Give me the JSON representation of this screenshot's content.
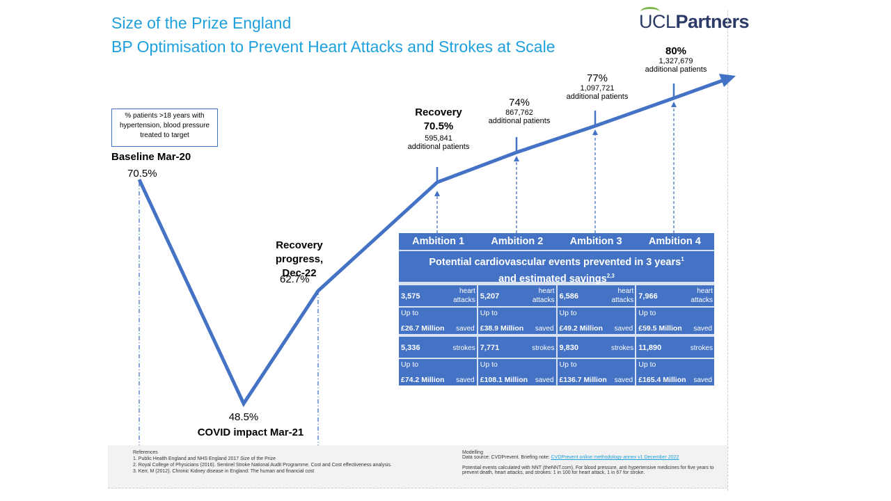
{
  "title": {
    "line1": "Size of the Prize England",
    "line2": "BP Optimisation to Prevent Heart Attacks and Strokes at Scale"
  },
  "logo": {
    "text_ucl": "UCL",
    "text_partners": "Partners"
  },
  "legend": "% patients >18 years with hypertension, blood pressure treated to target",
  "points": [
    {
      "label": "Baseline Mar-20",
      "value": "70.5%",
      "pct": 70.5
    },
    {
      "label": "COVID impact Mar-21",
      "value": "48.5%",
      "pct": 48.5
    },
    {
      "label": "Recovery progress, Dec-22",
      "value": "62.7%",
      "pct": 62.7
    },
    {
      "label": "Recovery",
      "value": "70.5%",
      "patients": "595,841",
      "suffix": "additional patients",
      "pct": 70.5
    },
    {
      "value": "74%",
      "patients": "867,762",
      "suffix": "additional patients",
      "pct": 74
    },
    {
      "value": "77%",
      "patients": "1,097,721",
      "suffix": "additional patients",
      "pct": 77
    },
    {
      "value": "80%",
      "patients": "1,327,679",
      "suffix": "additional patients",
      "pct": 80
    }
  ],
  "table": {
    "ambitions": [
      "Ambition 1",
      "Ambition 2",
      "Ambition 3",
      "Ambition 4"
    ],
    "heading1": "Potential cardiovascular events prevented in 3 years",
    "heading1_sup": "1",
    "heading2": "and estimated savings",
    "heading2_sup": "2,3",
    "heart": [
      {
        "n": "3,575",
        "m": "£26.7 Million"
      },
      {
        "n": "5,207",
        "m": "£38.9 Million"
      },
      {
        "n": "6,586",
        "m": "£49.2 Million"
      },
      {
        "n": "7,966",
        "m": "£59.5 Million"
      }
    ],
    "strokes": [
      {
        "n": "5,336",
        "m": "£74.2 Million"
      },
      {
        "n": "7,771",
        "m": "£108.1 Million"
      },
      {
        "n": "9,830",
        "m": "£136.7 Million"
      },
      {
        "n": "11,890",
        "m": "£165.4 Million"
      }
    ],
    "heart_unit": "heart attacks",
    "stroke_unit": "strokes",
    "upto": "Up to",
    "saved": "saved"
  },
  "footer": {
    "refs_title": "References",
    "refs": [
      "1.     Public Health England and NHS England 2017  Size of the Prize",
      "2.     Royal College of Physicians (2016). Sentinel Stroke National Audit Programme. Cost and Cost effectiveness analysis.",
      "3.     Kerr, M (2012). Chronic Kidney disease in England: The human and financial cost"
    ],
    "model_title": "Modelling",
    "model_source": "Data source: CVDPrevent.  Briefing note: ",
    "model_link": "CVDPrevent online methodology annex v1 December 2022",
    "model_note": "Potential events calculated with NNT (theNNT.com).  For blood pressure, anti hypertensive medicines for five years to prevent death, heart attacks, and strokes: 1 in 100 for heart attack, 1 in 67 for stroke."
  }
}
